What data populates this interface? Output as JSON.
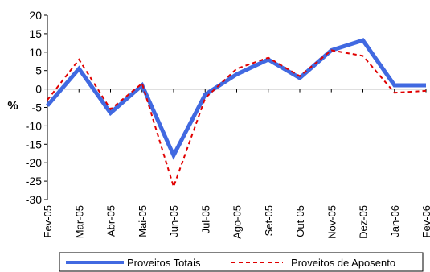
{
  "chart_data": {
    "type": "line",
    "title": "",
    "xlabel": "",
    "ylabel": "%",
    "ylim": [
      -30,
      20
    ],
    "yticks": [
      20,
      15,
      10,
      5,
      0,
      -5,
      -10,
      -15,
      -20,
      -25,
      -30
    ],
    "grid": false,
    "legend_position": "bottom",
    "categories": [
      "Fev-05",
      "Mar-05",
      "Abr-05",
      "Mai-05",
      "Jun-05",
      "Jul-05",
      "Ago-05",
      "Set-05",
      "Out-05",
      "Nov-05",
      "Dez-05",
      "Jan-06",
      "Fev-06"
    ],
    "series": [
      {
        "name": "Proveitos Totais",
        "color": "#4169E1",
        "style": "solid",
        "values": [
          -4.5,
          5.5,
          -6.5,
          1.0,
          -18.0,
          -1.5,
          4.0,
          8.0,
          3.0,
          10.5,
          13.2,
          1.0,
          1.0
        ]
      },
      {
        "name": "Proveitos de Aposento",
        "color": "#E00000",
        "style": "dashed",
        "values": [
          -3.0,
          8.0,
          -5.5,
          1.5,
          -26.5,
          -2.5,
          5.5,
          8.5,
          3.5,
          10.5,
          9.0,
          -1.0,
          -0.5
        ]
      }
    ]
  }
}
